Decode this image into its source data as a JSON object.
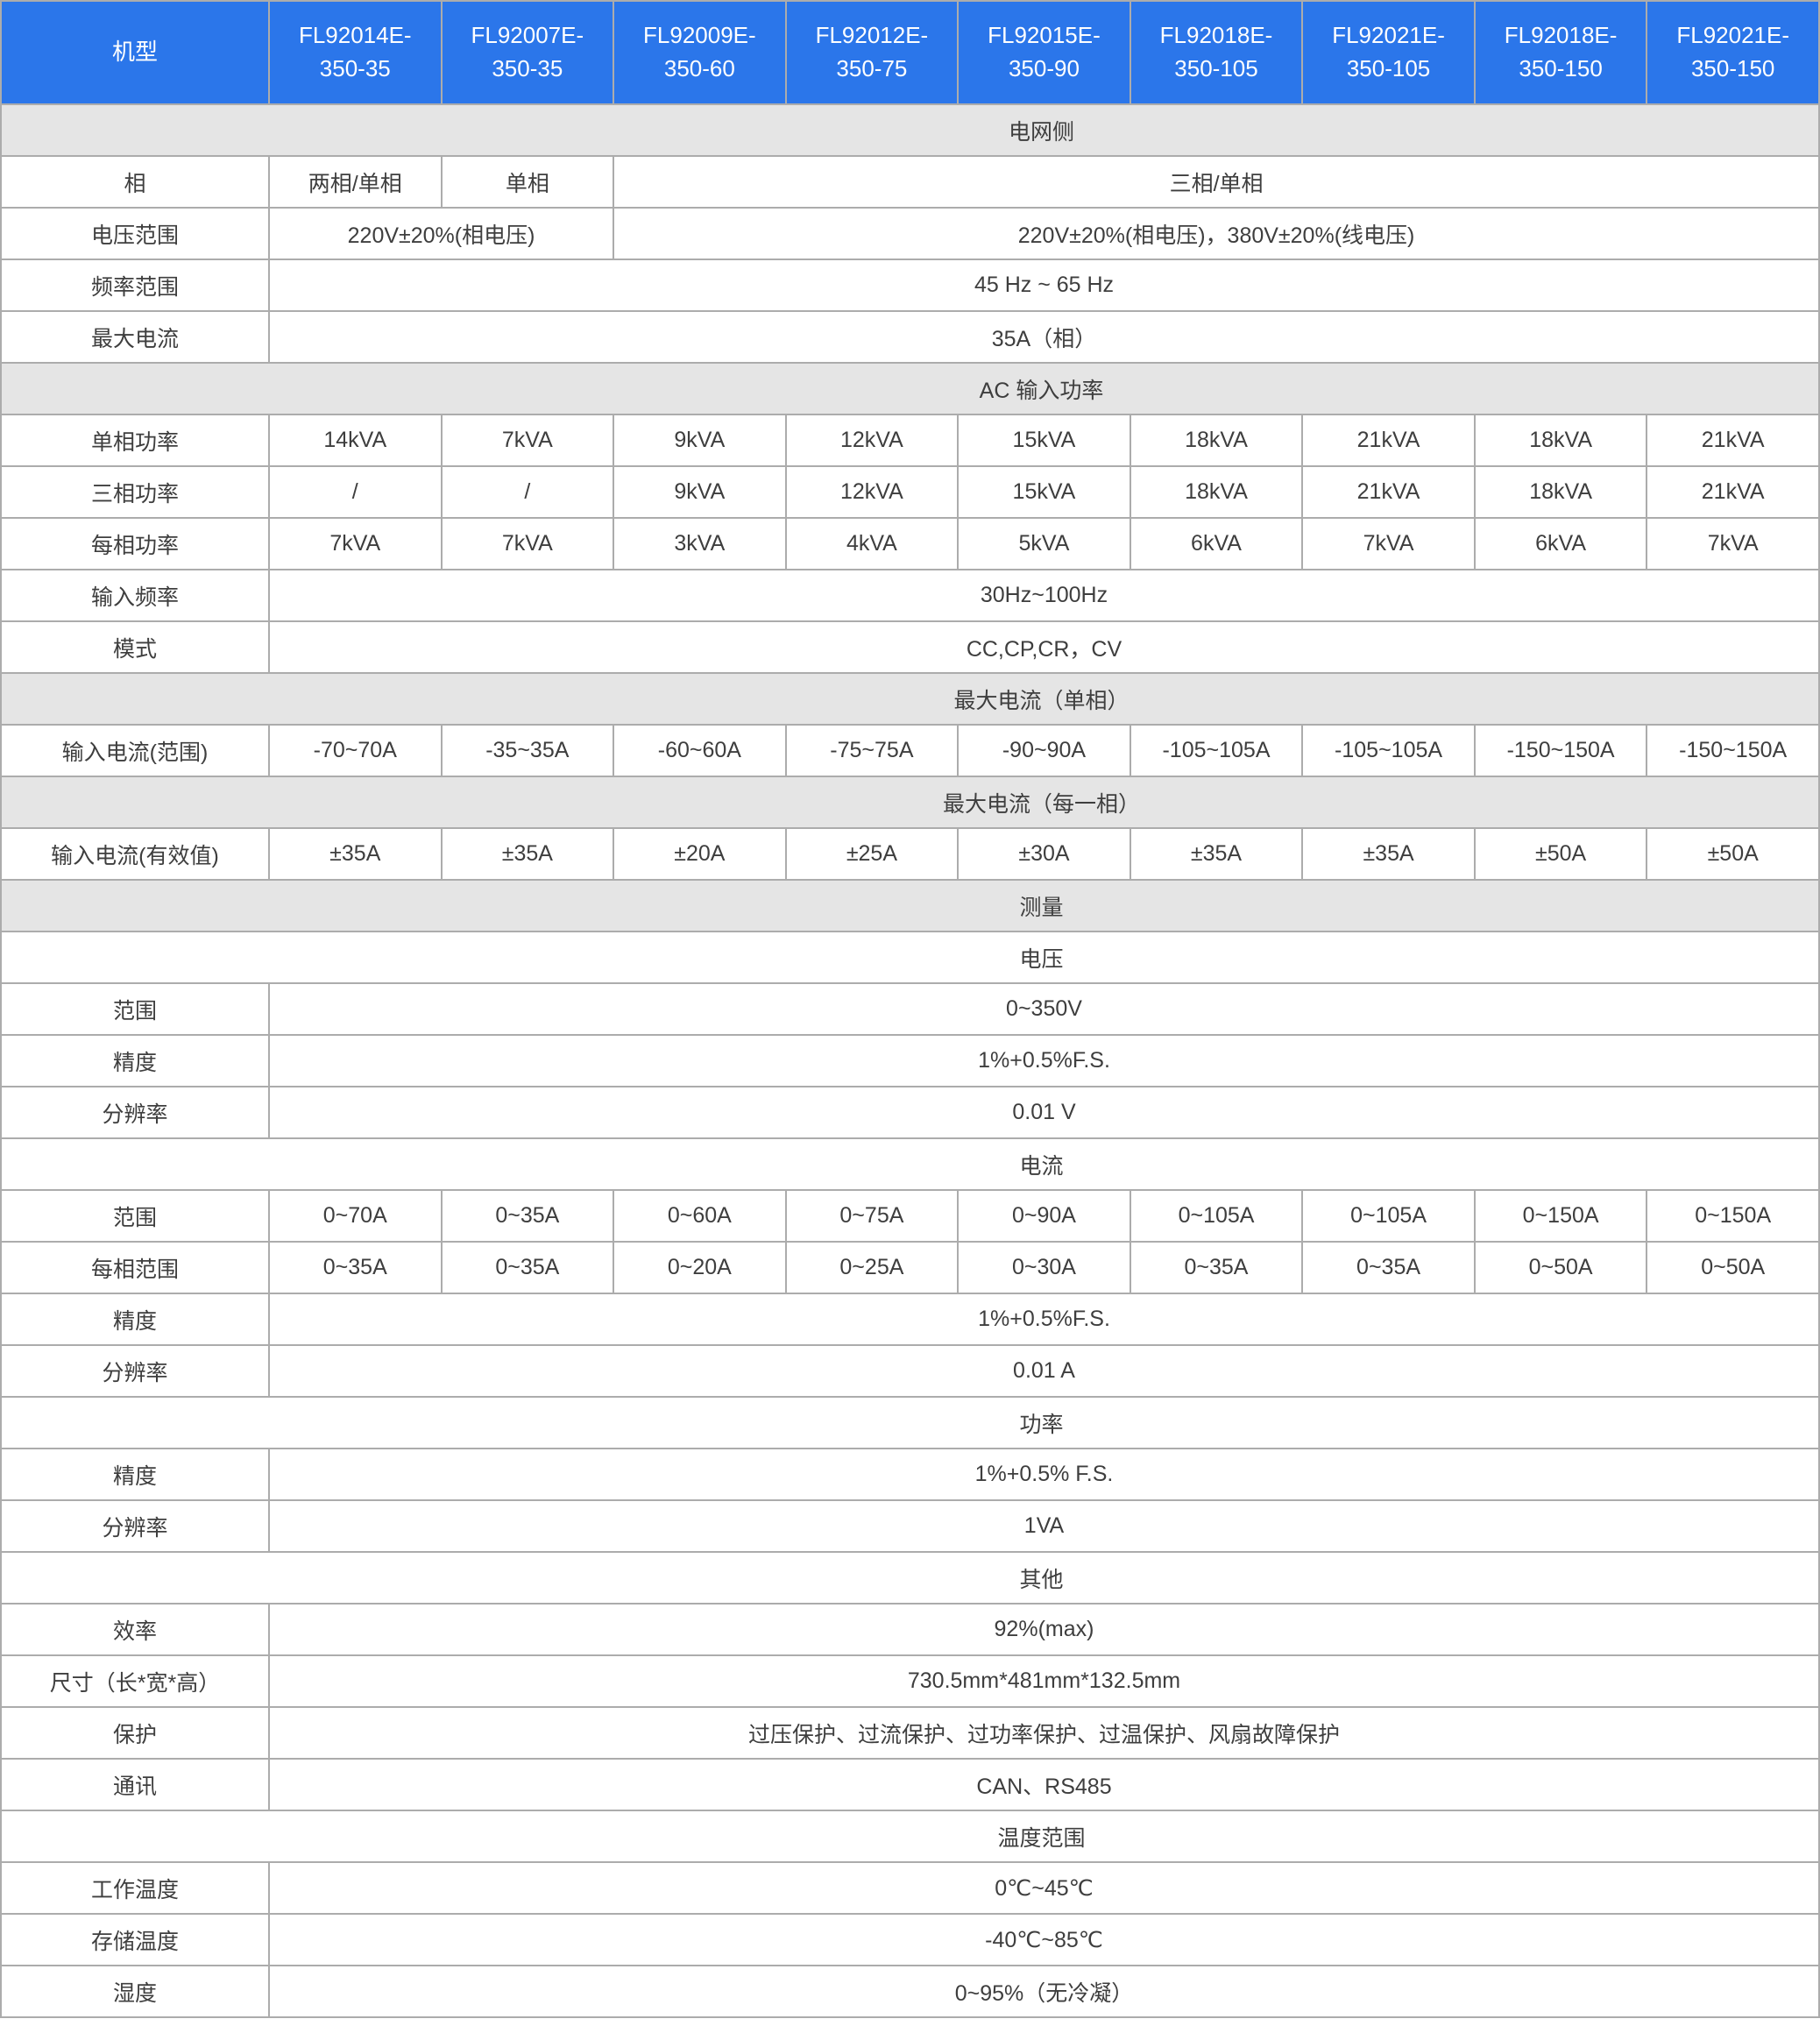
{
  "colors": {
    "header_bg": "#2B76EA",
    "header_text": "#FFFFFF",
    "band_bg": "#E5E5E5",
    "border": "#ACACAC",
    "text": "#3E3E3E"
  },
  "table": {
    "rows": [
      {
        "type": "header",
        "label": "机型",
        "models": [
          "FL92014E-\n350-35",
          "FL92007E-\n350-35",
          "FL92009E-\n350-60",
          "FL92012E-\n350-75",
          "FL92015E-\n350-90",
          "FL92018E-\n350-105",
          "FL92021E-\n350-105",
          "FL92018E-\n350-150",
          "FL92021E-\n350-150"
        ]
      },
      {
        "type": "band",
        "text": "电网侧"
      },
      {
        "type": "data",
        "label": "相",
        "cells": [
          {
            "text": "两相/单相",
            "span": 1
          },
          {
            "text": "单相",
            "span": 1
          },
          {
            "text": "三相/单相",
            "span": 7
          }
        ]
      },
      {
        "type": "data",
        "label": "电压范围",
        "cells": [
          {
            "text": "220V±20%(相电压)",
            "span": 2
          },
          {
            "text": "220V±20%(相电压)，380V±20%(线电压)",
            "span": 7
          }
        ]
      },
      {
        "type": "data",
        "label": "频率范围",
        "cells": [
          {
            "text": "45 Hz ~ 65 Hz",
            "span": 9
          }
        ]
      },
      {
        "type": "data",
        "label": "最大电流",
        "cells": [
          {
            "text": "35A（相）",
            "span": 9
          }
        ]
      },
      {
        "type": "band",
        "text": "AC 输入功率"
      },
      {
        "type": "data",
        "label": "单相功率",
        "cells": [
          {
            "text": "14kVA",
            "span": 1
          },
          {
            "text": "7kVA",
            "span": 1
          },
          {
            "text": "9kVA",
            "span": 1
          },
          {
            "text": "12kVA",
            "span": 1
          },
          {
            "text": "15kVA",
            "span": 1
          },
          {
            "text": "18kVA",
            "span": 1
          },
          {
            "text": "21kVA",
            "span": 1
          },
          {
            "text": "18kVA",
            "span": 1
          },
          {
            "text": "21kVA",
            "span": 1
          }
        ]
      },
      {
        "type": "data",
        "label": "三相功率",
        "cells": [
          {
            "text": "/",
            "span": 1
          },
          {
            "text": "/",
            "span": 1
          },
          {
            "text": "9kVA",
            "span": 1
          },
          {
            "text": "12kVA",
            "span": 1
          },
          {
            "text": "15kVA",
            "span": 1
          },
          {
            "text": "18kVA",
            "span": 1
          },
          {
            "text": "21kVA",
            "span": 1
          },
          {
            "text": "18kVA",
            "span": 1
          },
          {
            "text": "21kVA",
            "span": 1
          }
        ]
      },
      {
        "type": "data",
        "label": "每相功率",
        "cells": [
          {
            "text": "7kVA",
            "span": 1
          },
          {
            "text": "7kVA",
            "span": 1
          },
          {
            "text": "3kVA",
            "span": 1
          },
          {
            "text": "4kVA",
            "span": 1
          },
          {
            "text": "5kVA",
            "span": 1
          },
          {
            "text": "6kVA",
            "span": 1
          },
          {
            "text": "7kVA",
            "span": 1
          },
          {
            "text": "6kVA",
            "span": 1
          },
          {
            "text": "7kVA",
            "span": 1
          }
        ]
      },
      {
        "type": "data",
        "label": "输入频率",
        "cells": [
          {
            "text": "30Hz~100Hz",
            "span": 9
          }
        ]
      },
      {
        "type": "data",
        "label": "模式",
        "cells": [
          {
            "text": "CC,CP,CR，CV",
            "span": 9
          }
        ]
      },
      {
        "type": "band",
        "text": "最大电流（单相）"
      },
      {
        "type": "data",
        "label": "输入电流(范围)",
        "cells": [
          {
            "text": "-70~70A",
            "span": 1
          },
          {
            "text": "-35~35A",
            "span": 1
          },
          {
            "text": "-60~60A",
            "span": 1
          },
          {
            "text": "-75~75A",
            "span": 1
          },
          {
            "text": "-90~90A",
            "span": 1
          },
          {
            "text": "-105~105A",
            "span": 1
          },
          {
            "text": "-105~105A",
            "span": 1
          },
          {
            "text": "-150~150A",
            "span": 1
          },
          {
            "text": "-150~150A",
            "span": 1
          }
        ]
      },
      {
        "type": "band",
        "text": "最大电流（每一相）"
      },
      {
        "type": "data",
        "label": "输入电流(有效值)",
        "cells": [
          {
            "text": "±35A",
            "span": 1
          },
          {
            "text": "±35A",
            "span": 1
          },
          {
            "text": "±20A",
            "span": 1
          },
          {
            "text": "±25A",
            "span": 1
          },
          {
            "text": "±30A",
            "span": 1
          },
          {
            "text": "±35A",
            "span": 1
          },
          {
            "text": "±35A",
            "span": 1
          },
          {
            "text": "±50A",
            "span": 1
          },
          {
            "text": "±50A",
            "span": 1
          }
        ]
      },
      {
        "type": "band",
        "text": "测量"
      },
      {
        "type": "whiteband",
        "text": "电压"
      },
      {
        "type": "data",
        "label": "范围",
        "cells": [
          {
            "text": "0~350V",
            "span": 9
          }
        ]
      },
      {
        "type": "data",
        "label": "精度",
        "cells": [
          {
            "text": "1%+0.5%F.S.",
            "span": 9
          }
        ]
      },
      {
        "type": "data",
        "label": "分辨率",
        "cells": [
          {
            "text": "0.01 V",
            "span": 9
          }
        ]
      },
      {
        "type": "whiteband",
        "text": "电流"
      },
      {
        "type": "data",
        "label": "范围",
        "cells": [
          {
            "text": "0~70A",
            "span": 1
          },
          {
            "text": "0~35A",
            "span": 1
          },
          {
            "text": "0~60A",
            "span": 1
          },
          {
            "text": "0~75A",
            "span": 1
          },
          {
            "text": "0~90A",
            "span": 1
          },
          {
            "text": "0~105A",
            "span": 1
          },
          {
            "text": "0~105A",
            "span": 1
          },
          {
            "text": "0~150A",
            "span": 1
          },
          {
            "text": "0~150A",
            "span": 1
          }
        ]
      },
      {
        "type": "data",
        "label": "每相范围",
        "cells": [
          {
            "text": "0~35A",
            "span": 1
          },
          {
            "text": "0~35A",
            "span": 1
          },
          {
            "text": "0~20A",
            "span": 1
          },
          {
            "text": "0~25A",
            "span": 1
          },
          {
            "text": "0~30A",
            "span": 1
          },
          {
            "text": "0~35A",
            "span": 1
          },
          {
            "text": "0~35A",
            "span": 1
          },
          {
            "text": "0~50A",
            "span": 1
          },
          {
            "text": "0~50A",
            "span": 1
          }
        ]
      },
      {
        "type": "data",
        "label": "精度",
        "cells": [
          {
            "text": "1%+0.5%F.S.",
            "span": 9
          }
        ]
      },
      {
        "type": "data",
        "label": "分辨率",
        "cells": [
          {
            "text": "0.01 A",
            "span": 9
          }
        ]
      },
      {
        "type": "whiteband",
        "text": "功率"
      },
      {
        "type": "data",
        "label": "精度",
        "cells": [
          {
            "text": "1%+0.5% F.S.",
            "span": 9
          }
        ]
      },
      {
        "type": "data",
        "label": "分辨率",
        "cells": [
          {
            "text": "1VA",
            "span": 9
          }
        ]
      },
      {
        "type": "whiteband",
        "text": "其他"
      },
      {
        "type": "data",
        "label": "效率",
        "cells": [
          {
            "text": "92%(max)",
            "span": 9
          }
        ]
      },
      {
        "type": "data",
        "label": "尺寸（长*宽*高）",
        "cells": [
          {
            "text": "730.5mm*481mm*132.5mm",
            "span": 9
          }
        ]
      },
      {
        "type": "data",
        "label": "保护",
        "cells": [
          {
            "text": "过压保护、过流保护、过功率保护、过温保护、风扇故障保护",
            "span": 9
          }
        ]
      },
      {
        "type": "data",
        "label": "通讯",
        "cells": [
          {
            "text": "CAN、RS485",
            "span": 9
          }
        ]
      },
      {
        "type": "whiteband",
        "text": "温度范围"
      },
      {
        "type": "data",
        "label": "工作温度",
        "cells": [
          {
            "text": "0℃~45℃",
            "span": 9
          }
        ]
      },
      {
        "type": "data",
        "label": "存储温度",
        "cells": [
          {
            "text": "-40℃~85℃",
            "span": 9
          }
        ]
      },
      {
        "type": "data",
        "label": "湿度",
        "cells": [
          {
            "text": "0~95%（无冷凝）",
            "span": 9
          }
        ]
      }
    ]
  }
}
